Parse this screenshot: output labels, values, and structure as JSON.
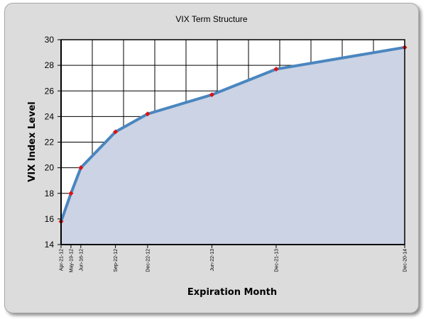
{
  "chart_data": {
    "type": "area",
    "title": "VIX Term Structure",
    "xlabel": "Expiration Month",
    "ylabel": "VIX Index Level",
    "ylim": [
      14,
      30
    ],
    "yticks": [
      "14",
      "16",
      "18",
      "20",
      "22",
      "24",
      "26",
      "28",
      "30"
    ],
    "grid": true,
    "colors": {
      "line": "#4a86bf",
      "area": "#cbd3e4",
      "marker": "#e01010",
      "background": "#ffffff"
    },
    "series": [
      {
        "points": [
          {
            "x": "2012-04-21",
            "label": "Apr-21-12",
            "y": 15.8
          },
          {
            "x": "2012-05-19",
            "label": "May-19-12",
            "y": 18.0
          },
          {
            "x": "2012-06-16",
            "label": "Jun-16-12",
            "y": 20.0
          },
          {
            "x": "2012-09-22",
            "label": "Sep-22-12",
            "y": 22.8
          },
          {
            "x": "2012-12-22",
            "label": "Dec-22-12",
            "y": 24.2
          },
          {
            "x": "2013-06-22",
            "label": "Jun-22-13",
            "y": 25.7
          },
          {
            "x": "2013-12-21",
            "label": "Dec-21-13",
            "y": 27.7
          },
          {
            "x": "2014-12-20",
            "label": "Dec-20-14",
            "y": 29.4
          }
        ]
      }
    ]
  }
}
